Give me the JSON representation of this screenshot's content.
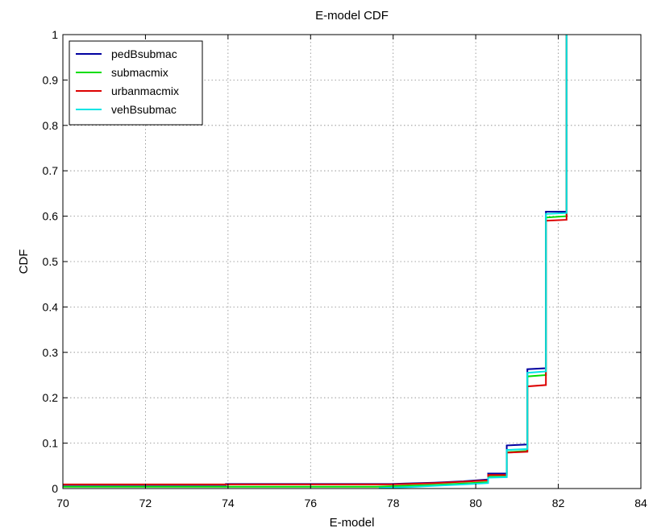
{
  "chart_data": {
    "type": "line",
    "title": "E-model CDF",
    "xlabel": "E-model",
    "ylabel": "CDF",
    "xlim": [
      70,
      84
    ],
    "ylim": [
      0,
      1
    ],
    "x_ticks": [
      70,
      72,
      74,
      76,
      78,
      80,
      82,
      84
    ],
    "y_ticks": [
      0,
      0.1,
      0.2,
      0.3,
      0.4,
      0.5,
      0.6,
      0.7,
      0.8,
      0.9,
      1
    ],
    "grid": true,
    "legend_position": "top-left",
    "series": [
      {
        "name": "pedBsubmac",
        "color": "#0000a0",
        "points": [
          [
            70,
            0.008
          ],
          [
            73.95,
            0.008
          ],
          [
            73.95,
            0.01
          ],
          [
            77.95,
            0.01
          ],
          [
            78.3,
            0.011
          ],
          [
            79.0,
            0.013
          ],
          [
            79.7,
            0.016
          ],
          [
            80.3,
            0.02
          ],
          [
            80.3,
            0.033
          ],
          [
            80.75,
            0.033
          ],
          [
            80.75,
            0.095
          ],
          [
            81.25,
            0.097
          ],
          [
            81.25,
            0.263
          ],
          [
            81.7,
            0.265
          ],
          [
            81.7,
            0.61
          ],
          [
            82.2,
            0.61
          ],
          [
            82.2,
            1
          ]
        ]
      },
      {
        "name": "submacmix",
        "color": "#00dd00",
        "points": [
          [
            70,
            0.004
          ],
          [
            77.6,
            0.004
          ],
          [
            78.3,
            0.006
          ],
          [
            79.0,
            0.008
          ],
          [
            79.7,
            0.011
          ],
          [
            80.3,
            0.014
          ],
          [
            80.3,
            0.026
          ],
          [
            80.75,
            0.026
          ],
          [
            80.75,
            0.08
          ],
          [
            81.25,
            0.083
          ],
          [
            81.25,
            0.247
          ],
          [
            81.7,
            0.25
          ],
          [
            81.7,
            0.597
          ],
          [
            82.2,
            0.6
          ],
          [
            82.2,
            1
          ]
        ]
      },
      {
        "name": "urbanmacmix",
        "color": "#dd0000",
        "points": [
          [
            70,
            0.009
          ],
          [
            77.95,
            0.009
          ],
          [
            78.3,
            0.01
          ],
          [
            79.0,
            0.012
          ],
          [
            79.7,
            0.015
          ],
          [
            80.3,
            0.018
          ],
          [
            80.3,
            0.03
          ],
          [
            80.75,
            0.03
          ],
          [
            80.75,
            0.079
          ],
          [
            81.25,
            0.081
          ],
          [
            81.25,
            0.225
          ],
          [
            81.7,
            0.228
          ],
          [
            81.7,
            0.59
          ],
          [
            82.2,
            0.592
          ],
          [
            82.2,
            1
          ]
        ]
      },
      {
        "name": "vehBsubmac",
        "color": "#00e5e5",
        "points": [
          [
            77.65,
            0.001
          ],
          [
            78.3,
            0.003
          ],
          [
            79.0,
            0.006
          ],
          [
            79.7,
            0.009
          ],
          [
            80.3,
            0.012
          ],
          [
            80.3,
            0.024
          ],
          [
            80.75,
            0.025
          ],
          [
            80.75,
            0.085
          ],
          [
            81.25,
            0.087
          ],
          [
            81.25,
            0.255
          ],
          [
            81.7,
            0.258
          ],
          [
            81.7,
            0.605
          ],
          [
            82.2,
            0.607
          ],
          [
            82.2,
            1
          ]
        ]
      }
    ]
  }
}
